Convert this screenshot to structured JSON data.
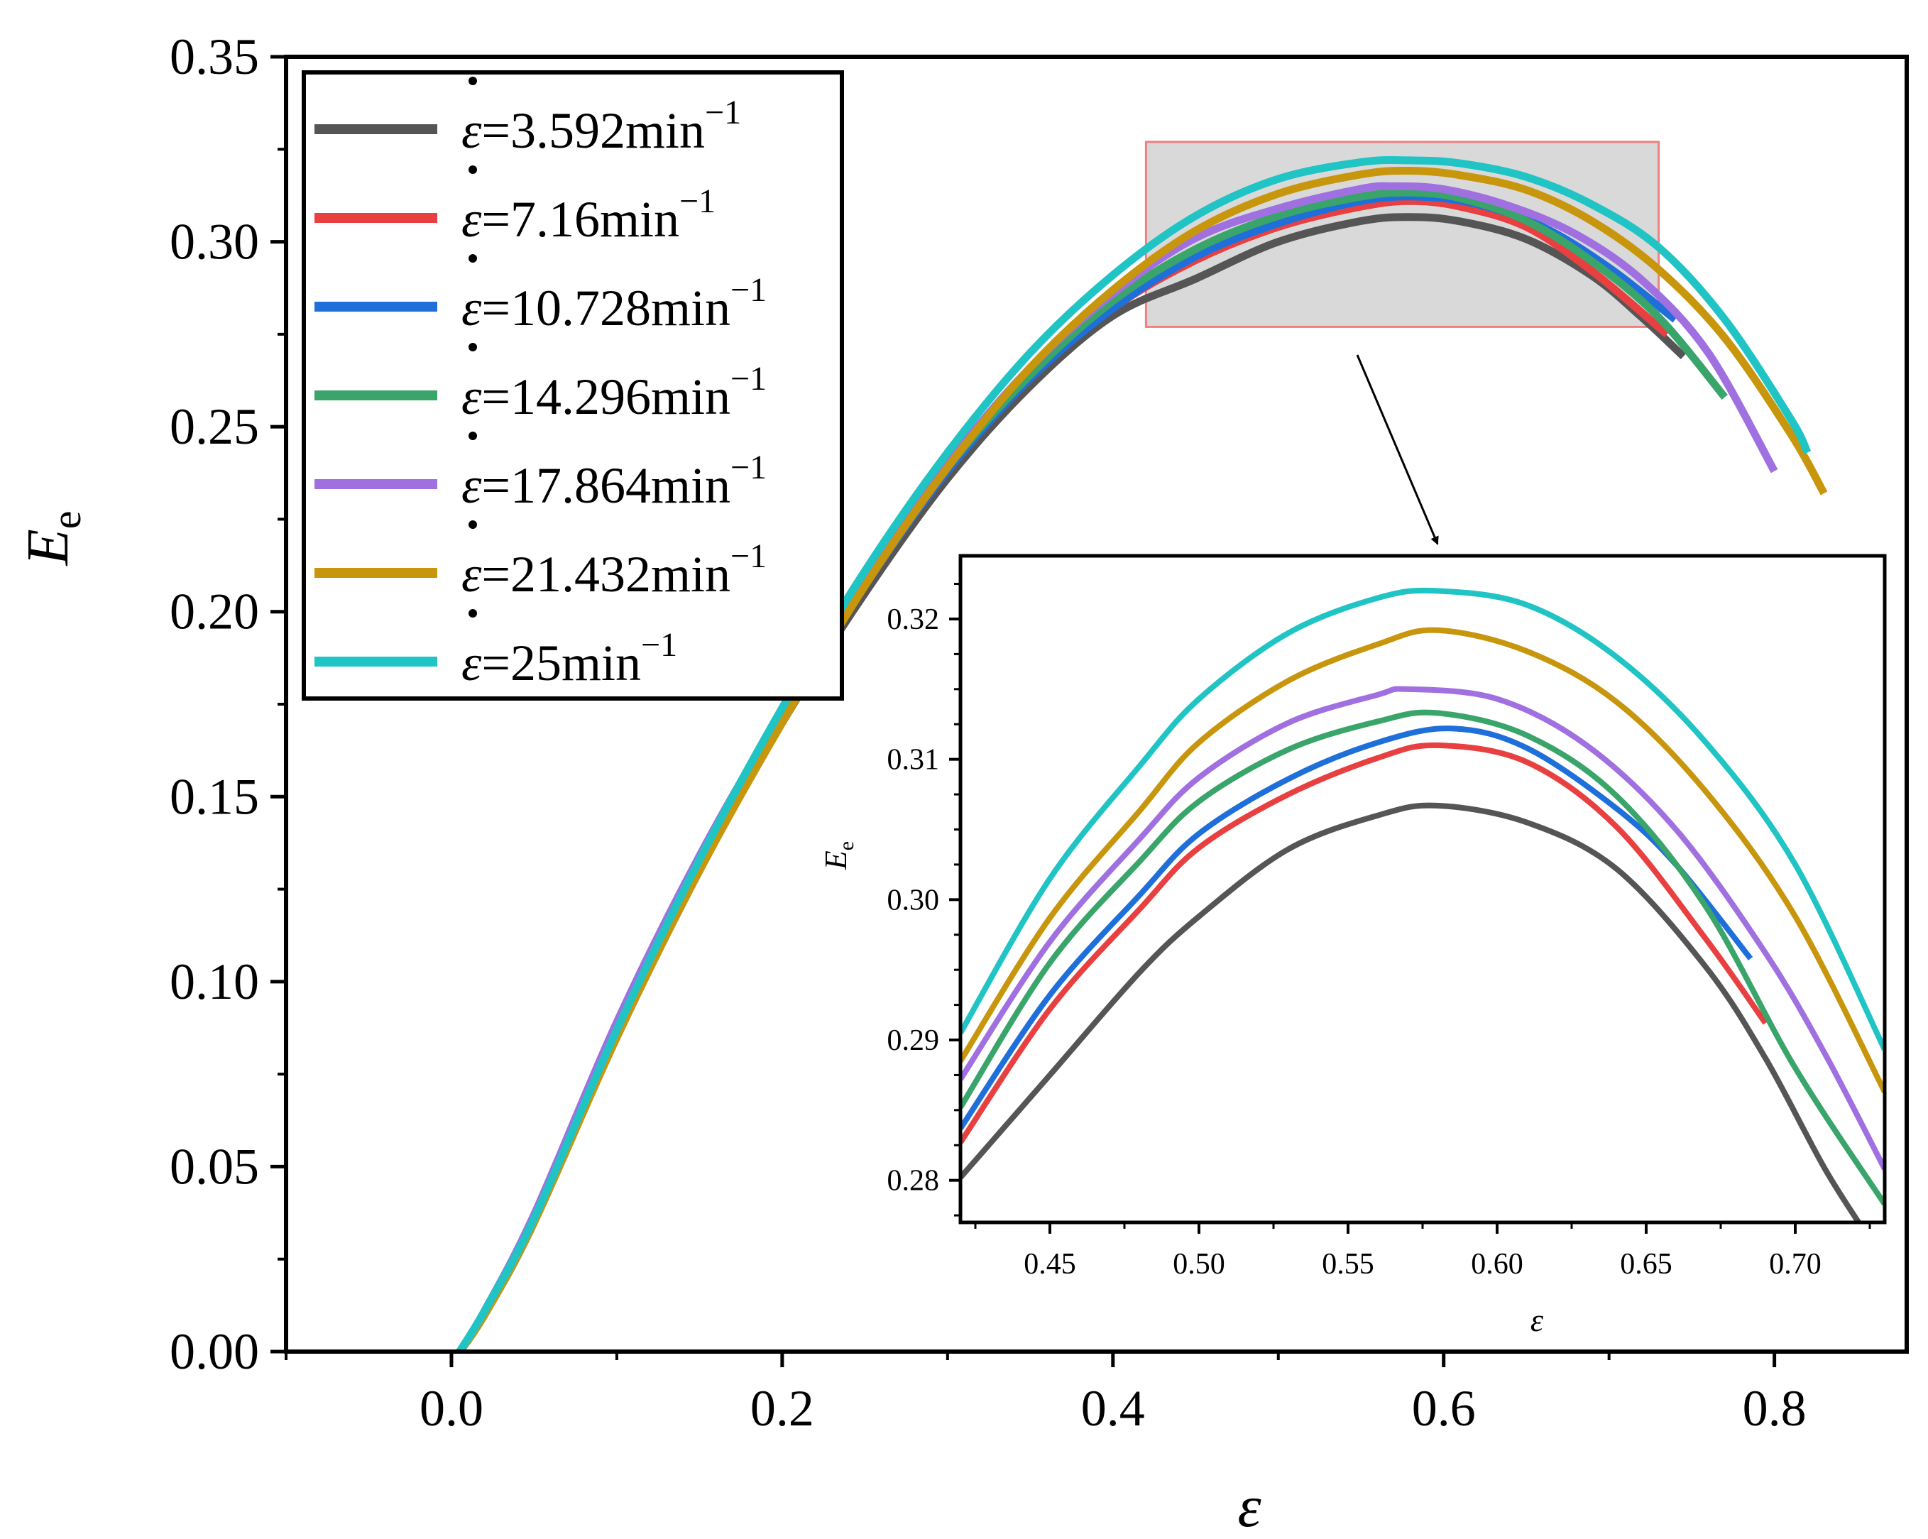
{
  "chart_data": [
    {
      "type": "line",
      "role": "main",
      "xlabel": "ε",
      "ylabel": "E",
      "ylabel_sub": "e",
      "xlim": [
        -0.1,
        0.88
      ],
      "ylim": [
        0.0,
        0.35
      ],
      "xticks": [
        "0.0",
        "0.2",
        "0.4",
        "0.6",
        "0.8"
      ],
      "xtick_values": [
        0.0,
        0.2,
        0.4,
        0.6,
        0.8
      ],
      "yticks": [
        "0.00",
        "0.05",
        "0.10",
        "0.15",
        "0.20",
        "0.25",
        "0.30",
        "0.35"
      ],
      "ytick_values": [
        0.0,
        0.05,
        0.1,
        0.15,
        0.2,
        0.25,
        0.3,
        0.35
      ],
      "legend_position": "top-left",
      "zoom_box": {
        "x_range": [
          0.42,
          0.73
        ],
        "y_range": [
          0.277,
          0.327
        ],
        "fill": "#d9d9d9",
        "stroke": "#f08080"
      },
      "series": [
        {
          "name": "ε̇=3.592min⁻¹",
          "label_main": "ε=3.592min",
          "color": "#555555",
          "x": [
            0.005,
            0.02,
            0.05,
            0.1,
            0.15,
            0.2,
            0.25,
            0.3,
            0.35,
            0.4,
            0.45,
            0.5,
            0.55,
            0.58,
            0.61,
            0.65,
            0.69,
            0.72,
            0.745
          ],
          "y": [
            0.0,
            0.01,
            0.035,
            0.085,
            0.13,
            0.17,
            0.205,
            0.236,
            0.261,
            0.28,
            0.29,
            0.3,
            0.3056,
            0.3067,
            0.3055,
            0.3007,
            0.2907,
            0.2795,
            0.269
          ]
        },
        {
          "name": "ε̇=7.16min⁻¹",
          "label_main": "ε=7.16min",
          "color": "#e84040",
          "x": [
            0.005,
            0.02,
            0.05,
            0.1,
            0.15,
            0.2,
            0.25,
            0.3,
            0.35,
            0.4,
            0.45,
            0.5,
            0.55,
            0.58,
            0.61,
            0.65,
            0.69,
            0.735
          ],
          "y": [
            0.0,
            0.01,
            0.035,
            0.086,
            0.131,
            0.171,
            0.207,
            0.238,
            0.263,
            0.282,
            0.295,
            0.304,
            0.3095,
            0.311,
            0.3095,
            0.304,
            0.292,
            0.275
          ]
        },
        {
          "name": "ε̇=10.728min⁻¹",
          "label_main": "ε=10.728min",
          "color": "#1f6fdb",
          "x": [
            0.005,
            0.02,
            0.05,
            0.1,
            0.15,
            0.2,
            0.25,
            0.3,
            0.35,
            0.4,
            0.45,
            0.5,
            0.55,
            0.585,
            0.62,
            0.66,
            0.7,
            0.74
          ],
          "y": [
            0.0,
            0.01,
            0.035,
            0.086,
            0.131,
            0.171,
            0.207,
            0.238,
            0.263,
            0.282,
            0.296,
            0.305,
            0.311,
            0.3122,
            0.3102,
            0.304,
            0.293,
            0.279
          ]
        },
        {
          "name": "ε̇=14.296min⁻¹",
          "label_main": "ε=14.296min",
          "color": "#3aa56a",
          "x": [
            0.005,
            0.02,
            0.05,
            0.1,
            0.15,
            0.2,
            0.25,
            0.3,
            0.35,
            0.4,
            0.45,
            0.5,
            0.55,
            0.58,
            0.61,
            0.65,
            0.69,
            0.73,
            0.77
          ],
          "y": [
            0.0,
            0.01,
            0.035,
            0.087,
            0.132,
            0.172,
            0.208,
            0.239,
            0.264,
            0.284,
            0.298,
            0.307,
            0.3122,
            0.3133,
            0.3118,
            0.3057,
            0.2946,
            0.2796,
            0.258
          ]
        },
        {
          "name": "ε̇=17.864min⁻¹",
          "label_main": "ε=17.864min",
          "color": "#a070e0",
          "x": [
            0.005,
            0.02,
            0.05,
            0.1,
            0.15,
            0.2,
            0.25,
            0.3,
            0.35,
            0.4,
            0.45,
            0.5,
            0.55,
            0.57,
            0.6,
            0.64,
            0.68,
            0.72,
            0.76,
            0.8
          ],
          "y": [
            0.0,
            0.011,
            0.037,
            0.089,
            0.134,
            0.173,
            0.209,
            0.24,
            0.266,
            0.286,
            0.301,
            0.309,
            0.3143,
            0.315,
            0.3142,
            0.3096,
            0.302,
            0.2896,
            0.27,
            0.238
          ]
        },
        {
          "name": "ε̇=21.432min⁻¹",
          "label_main": "ε=21.432min",
          "color": "#c8960c",
          "x": [
            0.005,
            0.02,
            0.05,
            0.1,
            0.15,
            0.2,
            0.25,
            0.3,
            0.35,
            0.4,
            0.45,
            0.5,
            0.55,
            0.58,
            0.61,
            0.65,
            0.69,
            0.73,
            0.77,
            0.81,
            0.83
          ],
          "y": [
            0.0,
            0.01,
            0.035,
            0.085,
            0.13,
            0.17,
            0.207,
            0.239,
            0.266,
            0.287,
            0.303,
            0.313,
            0.3182,
            0.3192,
            0.318,
            0.314,
            0.3055,
            0.2925,
            0.274,
            0.248,
            0.232
          ]
        },
        {
          "name": "ε̇=25min⁻¹",
          "label_main": "ε=25min",
          "color": "#20c4c4",
          "x": [
            0.005,
            0.02,
            0.05,
            0.1,
            0.15,
            0.2,
            0.25,
            0.3,
            0.35,
            0.4,
            0.45,
            0.5,
            0.55,
            0.58,
            0.61,
            0.65,
            0.69,
            0.73,
            0.77,
            0.81,
            0.82
          ],
          "y": [
            0.0,
            0.011,
            0.036,
            0.087,
            0.133,
            0.174,
            0.211,
            0.243,
            0.27,
            0.291,
            0.307,
            0.317,
            0.3215,
            0.322,
            0.3212,
            0.3175,
            0.31,
            0.2985,
            0.279,
            0.252,
            0.243
          ]
        }
      ]
    },
    {
      "type": "line",
      "role": "inset",
      "xlabel": "ε",
      "ylabel": "E",
      "ylabel_sub": "e",
      "xlim": [
        0.42,
        0.73
      ],
      "ylim": [
        0.277,
        0.3245
      ],
      "xticks": [
        "0.45",
        "0.50",
        "0.55",
        "0.60",
        "0.65",
        "0.70"
      ],
      "xtick_values": [
        0.45,
        0.5,
        0.55,
        0.6,
        0.65,
        0.7
      ],
      "yticks": [
        "0.28",
        "0.29",
        "0.30",
        "0.31",
        "0.32"
      ],
      "ytick_values": [
        0.28,
        0.29,
        0.3,
        0.31,
        0.32
      ],
      "series": [
        {
          "color": "#555555",
          "x": [
            0.42,
            0.45,
            0.48,
            0.5,
            0.53,
            0.56,
            0.58,
            0.61,
            0.64,
            0.67,
            0.69,
            0.71,
            0.725
          ],
          "y": [
            0.2802,
            0.2875,
            0.2948,
            0.2988,
            0.3036,
            0.306,
            0.3067,
            0.3055,
            0.3022,
            0.2952,
            0.2887,
            0.2808,
            0.2758
          ]
        },
        {
          "color": "#e84040",
          "x": [
            0.42,
            0.45,
            0.48,
            0.5,
            0.53,
            0.56,
            0.58,
            0.61,
            0.64,
            0.67,
            0.69
          ],
          "y": [
            0.2827,
            0.2922,
            0.2993,
            0.3037,
            0.3075,
            0.3101,
            0.311,
            0.3098,
            0.3052,
            0.2972,
            0.2912
          ]
        },
        {
          "color": "#1f6fdb",
          "x": [
            0.42,
            0.45,
            0.48,
            0.5,
            0.53,
            0.56,
            0.585,
            0.61,
            0.64,
            0.66,
            0.685
          ],
          "y": [
            0.2837,
            0.2932,
            0.3003,
            0.3047,
            0.3086,
            0.3112,
            0.3122,
            0.3108,
            0.3065,
            0.3025,
            0.2958
          ]
        },
        {
          "color": "#3aa56a",
          "x": [
            0.42,
            0.45,
            0.48,
            0.5,
            0.53,
            0.56,
            0.58,
            0.61,
            0.64,
            0.67,
            0.7,
            0.73
          ],
          "y": [
            0.2852,
            0.2955,
            0.3027,
            0.307,
            0.3107,
            0.3127,
            0.3133,
            0.3117,
            0.3074,
            0.2995,
            0.288,
            0.2783
          ]
        },
        {
          "color": "#a070e0",
          "x": [
            0.42,
            0.45,
            0.48,
            0.5,
            0.53,
            0.56,
            0.57,
            0.6,
            0.63,
            0.66,
            0.69,
            0.71,
            0.73
          ],
          "y": [
            0.2872,
            0.297,
            0.3043,
            0.3087,
            0.3126,
            0.3146,
            0.315,
            0.3143,
            0.311,
            0.305,
            0.2962,
            0.289,
            0.2808
          ]
        },
        {
          "color": "#c8960c",
          "x": [
            0.42,
            0.45,
            0.48,
            0.5,
            0.53,
            0.56,
            0.58,
            0.61,
            0.64,
            0.67,
            0.7,
            0.73
          ],
          "y": [
            0.2885,
            0.2987,
            0.3063,
            0.3112,
            0.3156,
            0.3182,
            0.3192,
            0.3177,
            0.3141,
            0.3077,
            0.2988,
            0.2863
          ]
        },
        {
          "color": "#20c4c4",
          "x": [
            0.42,
            0.45,
            0.48,
            0.5,
            0.53,
            0.56,
            0.58,
            0.61,
            0.64,
            0.67,
            0.7,
            0.73
          ],
          "y": [
            0.2905,
            0.3015,
            0.3095,
            0.3143,
            0.319,
            0.3215,
            0.322,
            0.321,
            0.3173,
            0.3112,
            0.3025,
            0.2893
          ]
        }
      ]
    }
  ]
}
